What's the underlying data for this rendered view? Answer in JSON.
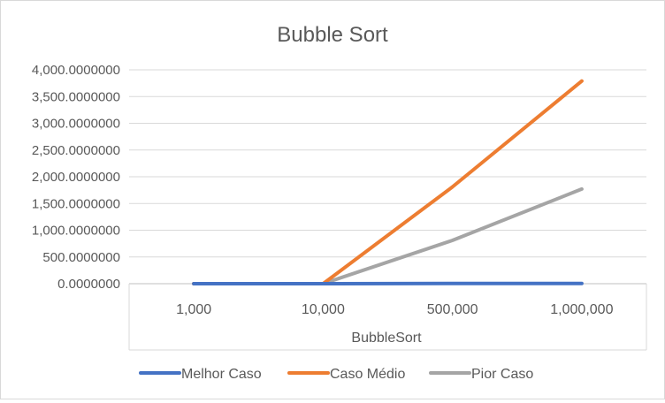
{
  "chart_data": {
    "type": "line",
    "title": "Bubble Sort",
    "xlabel": "BubbleSort",
    "ylabel": "",
    "categories": [
      "1,000",
      "10,000",
      "500,000",
      "1,000,000"
    ],
    "ylim": [
      0,
      4000
    ],
    "yticks": [
      0,
      500,
      1000,
      1500,
      2000,
      2500,
      3000,
      3500,
      4000
    ],
    "ytick_labels": [
      "0.0000000",
      "500.0000000",
      "1,000.0000000",
      "1,500.0000000",
      "2,000.0000000",
      "2,500.0000000",
      "3,000.0000000",
      "3,500.0000000",
      "4,000.0000000"
    ],
    "grid": true,
    "legend_position": "bottom",
    "series": [
      {
        "name": "Melhor Caso",
        "color": "#4472C4",
        "values": [
          0.0,
          0.0,
          3.0,
          5.0
        ]
      },
      {
        "name": "Caso Médio",
        "color": "#ED7D31",
        "values": [
          0.0,
          0.5,
          1810,
          3790
        ]
      },
      {
        "name": "Pior Caso",
        "color": "#A5A5A5",
        "values": [
          0.0,
          0.3,
          810,
          1770
        ]
      }
    ]
  }
}
